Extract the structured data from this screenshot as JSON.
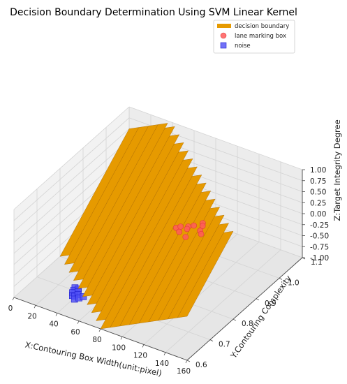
{
  "chart_data": {
    "type": "scatter",
    "projection": "3d",
    "title": "Decision Boundary Determination Using SVM Linear Kernel",
    "xlabel": "X:Contouring Box Width(unit:pixel)",
    "ylabel": "Y:Contouring Complexity",
    "zlabel": "Z:Target Integrity Degree",
    "xlim": [
      0,
      160
    ],
    "ylim": [
      0.6,
      1.1
    ],
    "zlim": [
      -1.0,
      1.0
    ],
    "xticks": [
      "0",
      "20",
      "40",
      "60",
      "80",
      "100",
      "120",
      "140",
      "160"
    ],
    "yticks": [
      "0.6",
      "0.7",
      "0.8",
      "0.9",
      "1.0",
      "1.1"
    ],
    "zticks": [
      "-1.00",
      "-0.75",
      "-0.50",
      "-0.25",
      "0.00",
      "0.25",
      "0.50",
      "0.75",
      "1.00"
    ],
    "grid": true,
    "legend_position": "top-right",
    "colors": {
      "decision_boundary": "#e69a00",
      "decision_boundary_edge": "#a86800",
      "lane_marking_box": "#ff5c5c",
      "noise": "#4f4ff5"
    },
    "legend": [
      "decision boundary",
      "lane marking box",
      "noise"
    ],
    "surface": {
      "name": "decision boundary",
      "plane": "z = 5*y + 0.0125*x - 5.0",
      "x_range": [
        0,
        160
      ],
      "y_range": [
        0.6,
        1.1
      ]
    },
    "series": [
      {
        "name": "lane marking box",
        "marker": "circle",
        "points": [
          [
            120,
            0.74,
            1.0
          ],
          [
            122,
            0.75,
            1.0
          ],
          [
            125,
            0.73,
            1.0
          ],
          [
            127,
            0.76,
            1.0
          ],
          [
            128,
            0.75,
            1.0
          ],
          [
            130,
            0.77,
            1.0
          ],
          [
            133,
            0.72,
            1.0
          ],
          [
            134,
            0.79,
            1.0
          ],
          [
            136,
            0.78,
            1.0
          ],
          [
            138,
            0.76,
            1.0
          ],
          [
            141,
            0.75,
            1.0
          ]
        ]
      },
      {
        "name": "noise",
        "marker": "square",
        "points": [
          [
            21,
            1.01,
            -1.0
          ],
          [
            22,
            0.96,
            -1.0
          ],
          [
            24,
            1.03,
            -1.0
          ],
          [
            25,
            0.98,
            -1.0
          ],
          [
            26,
            1.02,
            -1.0
          ],
          [
            26,
            0.94,
            -1.0
          ],
          [
            27,
            1.05,
            -1.0
          ],
          [
            29,
            0.99,
            -1.0
          ],
          [
            31,
            1.07,
            -1.0
          ],
          [
            33,
            1.03,
            -1.0
          ],
          [
            34,
            1.11,
            -1.0
          ],
          [
            33,
            0.71,
            -1.0
          ],
          [
            34,
            0.7,
            -1.0
          ],
          [
            35,
            0.69,
            -1.0
          ],
          [
            36,
            0.71,
            -1.0
          ],
          [
            37,
            0.68,
            -1.0
          ],
          [
            38,
            0.7,
            -1.0
          ],
          [
            39,
            0.68,
            -1.0
          ],
          [
            40,
            0.69,
            -1.0
          ],
          [
            41,
            0.67,
            -1.0
          ],
          [
            43,
            0.68,
            -1.0
          ],
          [
            45,
            0.69,
            -1.0
          ]
        ]
      }
    ]
  }
}
